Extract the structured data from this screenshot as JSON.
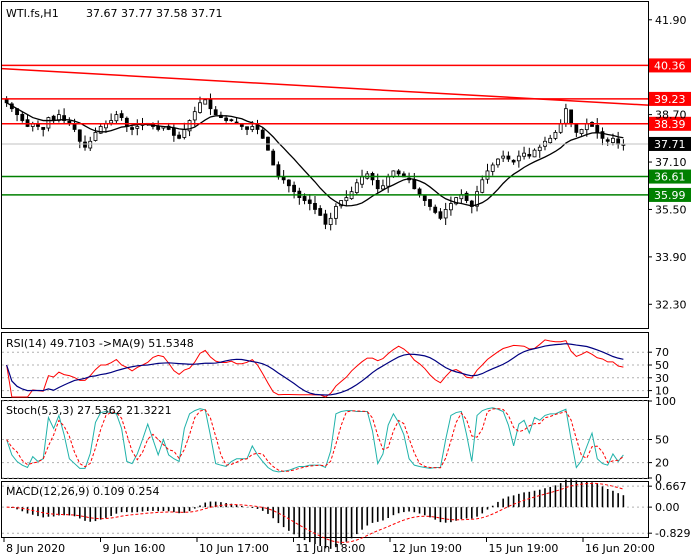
{
  "header": {
    "symbol": "WTI.fs,H1",
    "ohlc": "37.67 37.77 37.58 37.71"
  },
  "rsi": {
    "label": "RSI(14) 49.7103  ->MA(9) 51.5348"
  },
  "stoch": {
    "label": "Stoch(5,3,3) 27.5362 21.3221"
  },
  "macd": {
    "label": "MACD(12,26,9) 0.109 0.254"
  },
  "colors": {
    "level_line": "#ff0000",
    "support_line": "#008000",
    "candle": "#000000",
    "ma_line": "#000000",
    "rsi": "#000080",
    "rsi_ma": "#ff0000",
    "stoch_main": "#20b2aa",
    "stoch_signal": "#ff0000",
    "current_price_bg": "#000000"
  },
  "chart_data": [
    {
      "type": "candlestick",
      "panel": "price",
      "ylim": [
        31.5,
        42.5
      ],
      "y_ticks": [
        "41.90",
        "38.70",
        "37.10",
        "35.50",
        "33.90",
        "32.30"
      ],
      "y_tick_values": [
        41.9,
        38.7,
        37.1,
        35.5,
        33.9,
        32.3
      ],
      "x_labels": [
        "8 Jun 2020",
        "9 Jun 16:00",
        "10 Jun 17:00",
        "11 Jun 18:00",
        "12 Jun 19:00",
        "15 Jun 19:00",
        "16 Jun 20:00"
      ],
      "resistance_levels": [
        {
          "label": "40.36",
          "value": 40.36,
          "color": "#ff0000"
        },
        {
          "label": "39.23",
          "value": 39.23,
          "color": "#ff0000"
        },
        {
          "label": "38.39",
          "value": 38.39,
          "color": "#ff0000"
        }
      ],
      "support_levels": [
        {
          "label": "36.61",
          "value": 36.61,
          "color": "#008000"
        },
        {
          "label": "35.99",
          "value": 35.99,
          "color": "#008000"
        }
      ],
      "trend_line": {
        "start": 40.25,
        "end": 39.02,
        "color": "#ff0000"
      },
      "current_price": {
        "label": "37.71",
        "value": 37.71
      },
      "close_series": [
        39.1,
        38.9,
        38.7,
        38.5,
        38.3,
        38.4,
        38.3,
        38.2,
        38.6,
        38.5,
        38.7,
        38.5,
        38.4,
        38.2,
        37.8,
        37.6,
        37.8,
        38.1,
        38.3,
        38.4,
        38.5,
        38.7,
        38.6,
        38.3,
        38.2,
        38.3,
        38.4,
        38.4,
        38.3,
        38.2,
        38.3,
        38.2,
        38.0,
        37.9,
        38.2,
        38.5,
        38.8,
        39.1,
        39.2,
        38.9,
        38.7,
        38.6,
        38.5,
        38.5,
        38.4,
        38.3,
        38.2,
        38.3,
        38.2,
        37.9,
        37.5,
        37.0,
        36.6,
        36.5,
        36.3,
        36.1,
        35.9,
        35.8,
        35.7,
        35.5,
        35.3,
        35.0,
        35.2,
        35.6,
        35.8,
        35.9,
        36.1,
        36.4,
        36.6,
        36.7,
        36.5,
        36.2,
        36.3,
        36.6,
        36.8,
        36.7,
        36.6,
        36.5,
        36.2,
        36.0,
        35.8,
        35.6,
        35.4,
        35.2,
        35.5,
        35.7,
        35.9,
        36.0,
        35.8,
        35.6,
        36.1,
        36.5,
        36.8,
        37.0,
        37.2,
        37.3,
        37.2,
        37.1,
        37.3,
        37.4,
        37.3,
        37.5,
        37.6,
        37.8,
        37.9,
        38.1,
        38.4,
        38.9,
        38.4,
        38.1,
        38.2,
        38.4,
        38.3,
        38.1,
        37.9,
        37.8,
        37.9,
        37.7,
        37.7
      ],
      "ma_series": [
        39.1,
        39.0,
        38.9,
        38.8,
        38.7,
        38.6,
        38.55,
        38.5,
        38.5,
        38.5,
        38.52,
        38.53,
        38.52,
        38.48,
        38.42,
        38.32,
        38.22,
        38.15,
        38.12,
        38.12,
        38.16,
        38.22,
        38.28,
        38.3,
        38.34,
        38.36,
        38.38,
        38.36,
        38.34,
        38.32,
        38.3,
        38.28,
        38.26,
        38.22,
        38.2,
        38.22,
        38.28,
        38.4,
        38.52,
        38.62,
        38.66,
        38.66,
        38.66,
        38.64,
        38.6,
        38.56,
        38.48,
        38.42,
        38.36,
        38.27,
        38.12,
        37.95,
        37.75,
        37.57,
        37.38,
        37.2,
        37.0,
        36.81,
        36.62,
        36.43,
        36.22,
        36.04,
        35.88,
        35.76,
        35.66,
        35.62,
        35.63,
        35.66,
        35.72,
        35.83,
        35.95,
        36.05,
        36.15,
        36.25,
        36.33,
        36.42,
        36.5,
        36.54,
        36.52,
        36.46,
        36.38,
        36.26,
        36.12,
        35.97,
        35.86,
        35.79,
        35.73,
        35.7,
        35.66,
        35.62,
        35.66,
        35.73,
        35.84,
        36.0,
        36.18,
        36.38,
        36.55,
        36.69,
        36.8,
        36.92,
        37.02,
        37.11,
        37.19,
        37.27,
        37.36,
        37.46,
        37.58,
        37.74,
        37.84,
        37.9,
        37.96,
        38.03,
        38.08,
        38.09,
        38.07,
        38.03,
        38.0,
        37.95,
        37.92
      ]
    },
    {
      "type": "line",
      "panel": "RSI",
      "ylim": [
        0,
        100
      ],
      "y_ticks": [
        "70",
        "50",
        "30",
        "10"
      ],
      "y_tick_values": [
        70,
        50,
        30,
        10
      ],
      "series": [
        {
          "name": "RSI(14)",
          "color": "#000080"
        },
        {
          "name": "MA(9)",
          "color": "#ff0000"
        }
      ]
    },
    {
      "type": "line",
      "panel": "Stochastic",
      "ylim": [
        0,
        100
      ],
      "y_ticks": [
        "100",
        "50",
        "20",
        "0"
      ],
      "y_tick_values": [
        100,
        50,
        20,
        0
      ],
      "series": [
        {
          "name": "Stoch main",
          "color": "#20b2aa"
        },
        {
          "name": "Stoch signal",
          "color": "#ff0000"
        }
      ]
    },
    {
      "type": "bar",
      "panel": "MACD",
      "ylim": [
        -0.95,
        0.8
      ],
      "y_ticks": [
        "0.667",
        "0.00",
        "-0.829"
      ],
      "y_tick_values": [
        0.667,
        0.0,
        -0.829
      ],
      "series": [
        {
          "name": "MACD histogram",
          "color": "#000000"
        },
        {
          "name": "Signal",
          "color": "#ff0000"
        }
      ]
    }
  ]
}
